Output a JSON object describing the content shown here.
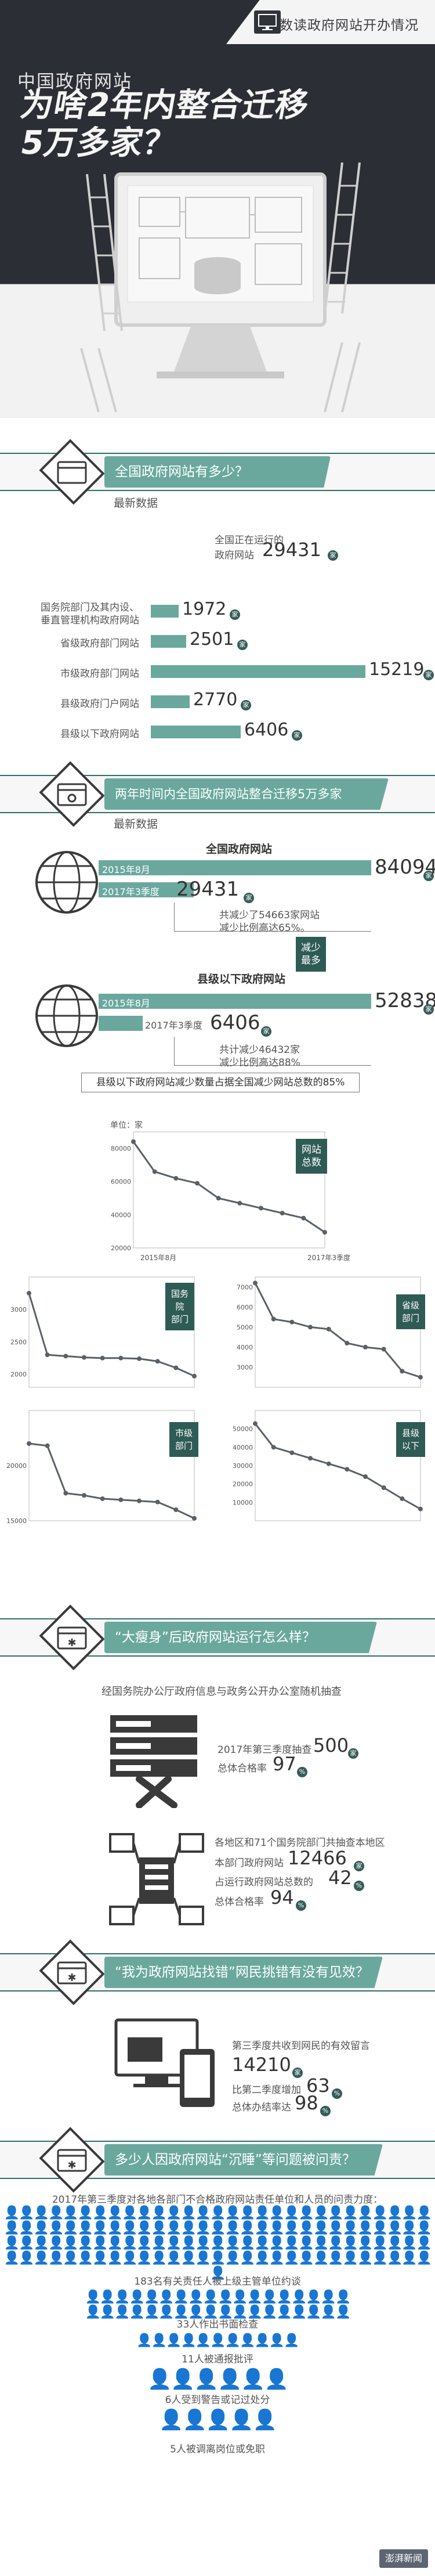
{
  "header": {
    "badge_text": "数读政府网站开办情况",
    "kicker": "中国政府网站",
    "title_line1": "为啥2年内整合迁移",
    "title_line2": "5万多家？"
  },
  "section1": {
    "label": "全国政府网站有多少？",
    "subtitle": "最新数据",
    "total_label_1": "全国正在运行的",
    "total_label_2": "政府网站",
    "total_value": "29431",
    "unit": "家",
    "bars": [
      {
        "label_1": "国务院部门及其内设、",
        "label_2": "垂直管理机构政府网站",
        "value": "1972",
        "fraction": 0.13
      },
      {
        "label_1": "省级政府部门网站",
        "label_2": "",
        "value": "2501",
        "fraction": 0.165
      },
      {
        "label_1": "市级政府部门网站",
        "label_2": "",
        "value": "15219",
        "fraction": 1.0
      },
      {
        "label_1": "县级政府门户网站",
        "label_2": "",
        "value": "2770",
        "fraction": 0.182
      },
      {
        "label_1": "县级以下政府网站",
        "label_2": "",
        "value": "6406",
        "fraction": 0.42
      }
    ]
  },
  "section2": {
    "label": "两年时间内全国政府网站整合迁移5万多家",
    "subtitle": "最新数据",
    "group1": {
      "title": "全国政府网站",
      "row1_label": "2015年8月",
      "row1_value": "84094",
      "row1_fraction": 1.0,
      "row2_label": "2017年3季度",
      "row2_value": "29431",
      "row2_fraction": 0.35,
      "note_1": "共减少了54663家网站",
      "note_2": "减少比例高达65%。",
      "unit": "家"
    },
    "group2": {
      "title": "县级以下政府网站",
      "badge_1": "减少",
      "badge_2": "最多",
      "row1_label": "2015年8月",
      "row1_value": "52838",
      "row1_fraction": 1.0,
      "row2_label": "2017年3季度",
      "row2_value": "6406",
      "row2_fraction": 0.121,
      "note_1": "共计减少46432家",
      "note_2": "减少比例高达88%",
      "unit": "家"
    },
    "footer": "县级以下政府网站减少数量占据全国减少网站总数的85%"
  },
  "charts": {
    "main": {
      "unit_label": "单位：家",
      "badge_1": "网站",
      "badge_2": "总数",
      "x_start": "2015年8月",
      "x_end": "2017年3季度"
    },
    "ministry_badge": [
      "国务院",
      "部门"
    ],
    "province_badge": [
      "省级",
      "部门"
    ],
    "city_badge": [
      "市级",
      "部门"
    ],
    "county_badge": [
      "县级",
      "以下"
    ]
  },
  "chart_data": [
    {
      "type": "line",
      "title": "网站总数",
      "ylabel": "单位：家",
      "ylim": [
        20000,
        90000
      ],
      "yticks": [
        20000,
        40000,
        60000,
        80000
      ],
      "x_labels": [
        "2015年8月",
        "2017年3季度"
      ],
      "values": [
        84094,
        66000,
        62000,
        59000,
        50000,
        47000,
        44000,
        41000,
        38000,
        29431
      ]
    },
    {
      "type": "line",
      "title": "国务院部门",
      "ylim": [
        1800,
        3500
      ],
      "yticks": [
        2000,
        2500,
        3000
      ],
      "values": [
        3250,
        2300,
        2280,
        2260,
        2250,
        2250,
        2240,
        2200,
        2100,
        1972
      ]
    },
    {
      "type": "line",
      "title": "省级部门",
      "ylim": [
        2000,
        7500
      ],
      "yticks": [
        3000,
        4000,
        5000,
        6000,
        7000
      ],
      "values": [
        7200,
        5400,
        5250,
        5000,
        4900,
        4200,
        4000,
        3900,
        2800,
        2501
      ]
    },
    {
      "type": "line",
      "title": "市级部门",
      "ylim": [
        15000,
        25000
      ],
      "yticks": [
        15000,
        20000
      ],
      "values": [
        22000,
        21800,
        17500,
        17300,
        17000,
        16900,
        16800,
        16700,
        16000,
        15219
      ]
    },
    {
      "type": "line",
      "title": "县级以下",
      "ylim": [
        0,
        60000
      ],
      "yticks": [
        10000,
        20000,
        30000,
        40000,
        50000
      ],
      "values": [
        52838,
        40000,
        37000,
        34000,
        31000,
        28000,
        24000,
        18000,
        12000,
        6406
      ]
    }
  ],
  "section3": {
    "label": "“大瘦身”后政府网站运行怎么样？",
    "intro": "经国务院办公厅政府信息与政务公开办公室随机抽查",
    "block1_line1_prefix": "2017年第三季度抽查",
    "block1_value1": "500",
    "block1_line2_prefix": "总体合格率",
    "block1_value2": "97",
    "block2_line1": "各地区和71个国务院部门共抽查本地区",
    "block2_line2_prefix": "本部门政府网站",
    "block2_value1": "12466",
    "block2_line3_prefix": "占运行政府网站总数的",
    "block2_value2": "42",
    "block2_line4_prefix": "总体合格率",
    "block2_value3": "94"
  },
  "section4": {
    "label": "“我为政府网站找错”网民挑错有没有见效？",
    "line1": "第三季度共收到网民的有效留言",
    "value1": "14210",
    "line2_prefix": "比第二季度增加",
    "value2": "63",
    "line3_prefix": "总体办结率达",
    "value3": "98"
  },
  "section5": {
    "label": "多少人因政府网站“沉睡”等问题被问责？",
    "intro": "2017年第三季度对各地各部门不合格政府网站责任单位和人员的问责力度：",
    "items": [
      {
        "text": "183名有关责任人被上级主管单位约谈",
        "count": 183
      },
      {
        "text": "33人作出书面检查",
        "count": 33
      },
      {
        "text": "11人被通报批评",
        "count": 11
      },
      {
        "text": "6人受到警告或记过处分",
        "count": 6
      },
      {
        "text": "5人被调离岗位或免职",
        "count": 5
      }
    ]
  },
  "footer": {
    "brand": "澎湃新闻"
  },
  "units": {
    "jia": "家",
    "percent": "%"
  },
  "colors": {
    "accent": "#6aa89e",
    "dark": "#2b2e34",
    "deep_green": "#2f5b55"
  }
}
